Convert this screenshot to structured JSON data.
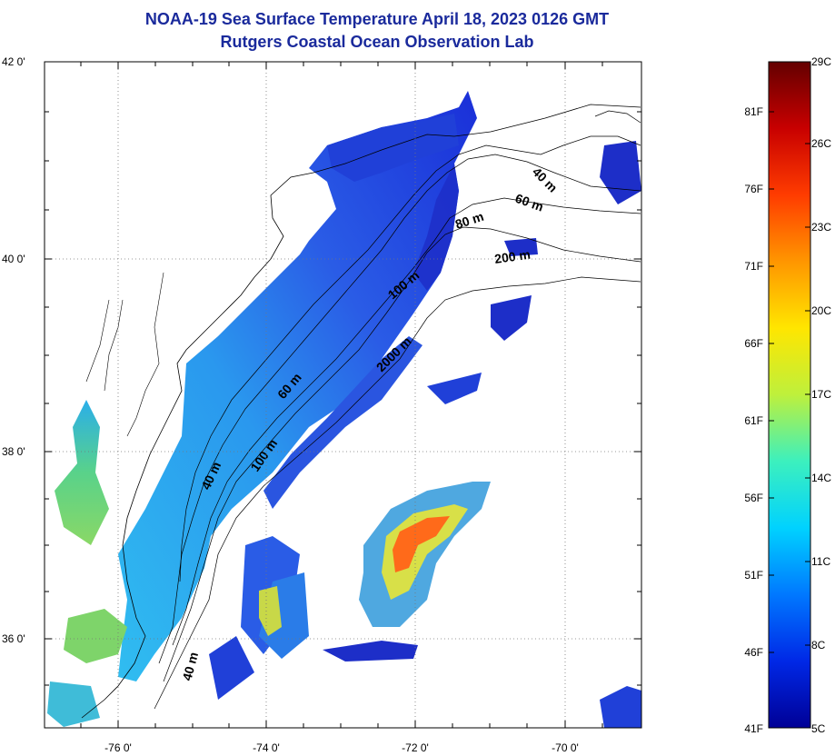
{
  "title_line1": "NOAA-19 Sea Surface Temperature April 18, 2023 0126 GMT",
  "title_line2": "Rutgers Coastal Ocean Observation Lab",
  "map": {
    "lat_labels": [
      "42 0'",
      "40 0'",
      "38 0'",
      "36 0'"
    ],
    "lon_labels": [
      "-76 0'",
      "-74 0'",
      "-72 0'",
      "-70 0'"
    ],
    "contour_labels": {
      "c40_ne": "40 m",
      "c60_ne": "60 m",
      "c80_ne": "80 m",
      "c200_ne": "200 m",
      "c100_mid": "100 m",
      "c2000_mid": "2000 m",
      "c60_mid": "60 m",
      "c100_sw": "100 m",
      "c40_sw": "40 m",
      "c40_s": "40 m"
    },
    "colors": {
      "land": "#ffffff",
      "water_cold": "#1e40e0",
      "water_mid": "#29a9f0",
      "water_warm": "#ff6a1a"
    }
  },
  "colorbar": {
    "fahrenheit_labels": [
      "81F",
      "76F",
      "71F",
      "66F",
      "61F",
      "56F",
      "51F",
      "46F",
      "41F"
    ],
    "celsius_labels": [
      "29C",
      "26C",
      "23C",
      "20C",
      "17C",
      "14C",
      "11C",
      "8C",
      "5C"
    ],
    "colors": [
      "#640000",
      "#c80000",
      "#ff3c00",
      "#ff9600",
      "#ffe600",
      "#bef03c",
      "#3cf0be",
      "#00d2ff",
      "#0078ff",
      "#0028e6",
      "#000096"
    ]
  }
}
